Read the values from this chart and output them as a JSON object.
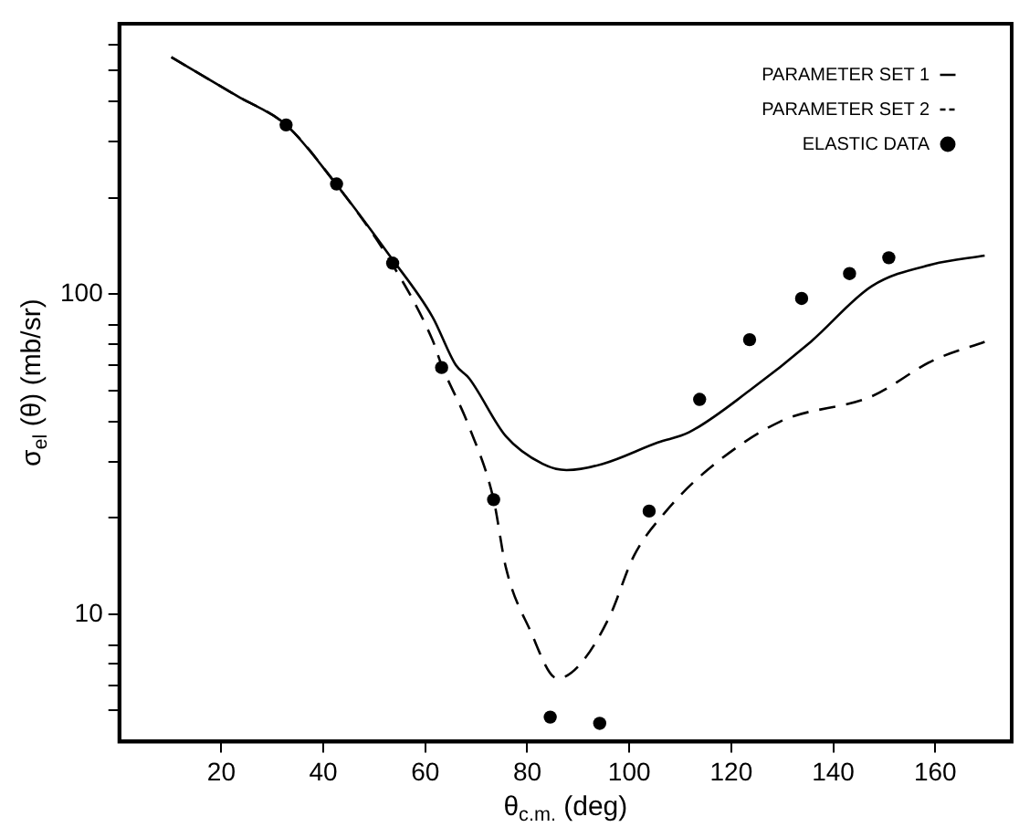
{
  "chart_data": {
    "type": "line",
    "xlabel": "θ$_{c.m.}$ (deg)",
    "ylabel": "σ$_{el}$ (θ) (mb/sr)",
    "log": "y",
    "grid": false,
    "legend": "top right",
    "xlim": [
      0,
      175
    ],
    "xticks": [
      20,
      40,
      60,
      80,
      100,
      120,
      140,
      160
    ],
    "ylim": [
      4,
      700
    ],
    "yticks": [
      {
        "value": 5,
        "label": null
      },
      {
        "value": 6,
        "label": null
      },
      {
        "value": 7,
        "label": null
      },
      {
        "value": 8,
        "label": null
      },
      10,
      {
        "value": 20,
        "label": null
      },
      {
        "value": 30,
        "label": null
      },
      {
        "value": 40,
        "label": null
      },
      {
        "value": 50,
        "label": null
      },
      {
        "value": 60,
        "label": null
      },
      {
        "value": 70,
        "label": null
      },
      {
        "value": 80,
        "label": null
      },
      100,
      {
        "value": 200,
        "label": null
      },
      {
        "value": 300,
        "label": null
      },
      {
        "value": 400,
        "label": null
      },
      {
        "value": 500,
        "label": null
      },
      {
        "value": 600,
        "label": null
      }
    ],
    "series": [
      {
        "name": "PARAMETER SET 1",
        "color": "#000000",
        "marker": "none",
        "line_style": "solid",
        "x": [
          10.2,
          23.1,
          32.7,
          42.2,
          53,
          61.4,
          66,
          68.6,
          75.8,
          83,
          87.7,
          94.8,
          105.6,
          111.7,
          123.6,
          135.6,
          147.6,
          159.5,
          169.7
        ],
        "values": [
          550,
          416,
          338,
          224,
          132,
          85,
          60,
          54.6,
          36,
          29.5,
          28.2,
          29.5,
          34.4,
          37,
          50,
          71,
          106,
          124,
          132
        ]
      },
      {
        "name": "PARAMETER SET 2",
        "color": "#000000",
        "marker": "none",
        "line_style": "dashed",
        "x": [
          10.2,
          23.1,
          32.7,
          42.2,
          53,
          61.4,
          63.2,
          68.6,
          73.4,
          75.8,
          80.5,
          85.9,
          90.1,
          96.1,
          100.9,
          106.9,
          115.3,
          129.6,
          147.6,
          159.5,
          169.7
        ],
        "values": [
          550,
          416,
          338,
          224,
          128,
          72,
          60,
          38.5,
          22.8,
          14,
          8.95,
          6.3,
          6.9,
          9.8,
          15.2,
          20.7,
          28.2,
          40,
          48,
          62,
          71
        ]
      },
      {
        "name": "ELASTIC DATA",
        "type": "scatter",
        "color": "#000000",
        "marker": "circle",
        "x": [
          32.7,
          42.6,
          53.6,
          63.2,
          73.4,
          84.5,
          94.2,
          103.9,
          113.8,
          123.6,
          133.8,
          143.2,
          150.9
        ],
        "values": [
          338,
          221,
          125,
          59,
          22.8,
          4.77,
          4.56,
          21,
          46.9,
          72.1,
          97,
          116,
          130
        ]
      }
    ]
  }
}
